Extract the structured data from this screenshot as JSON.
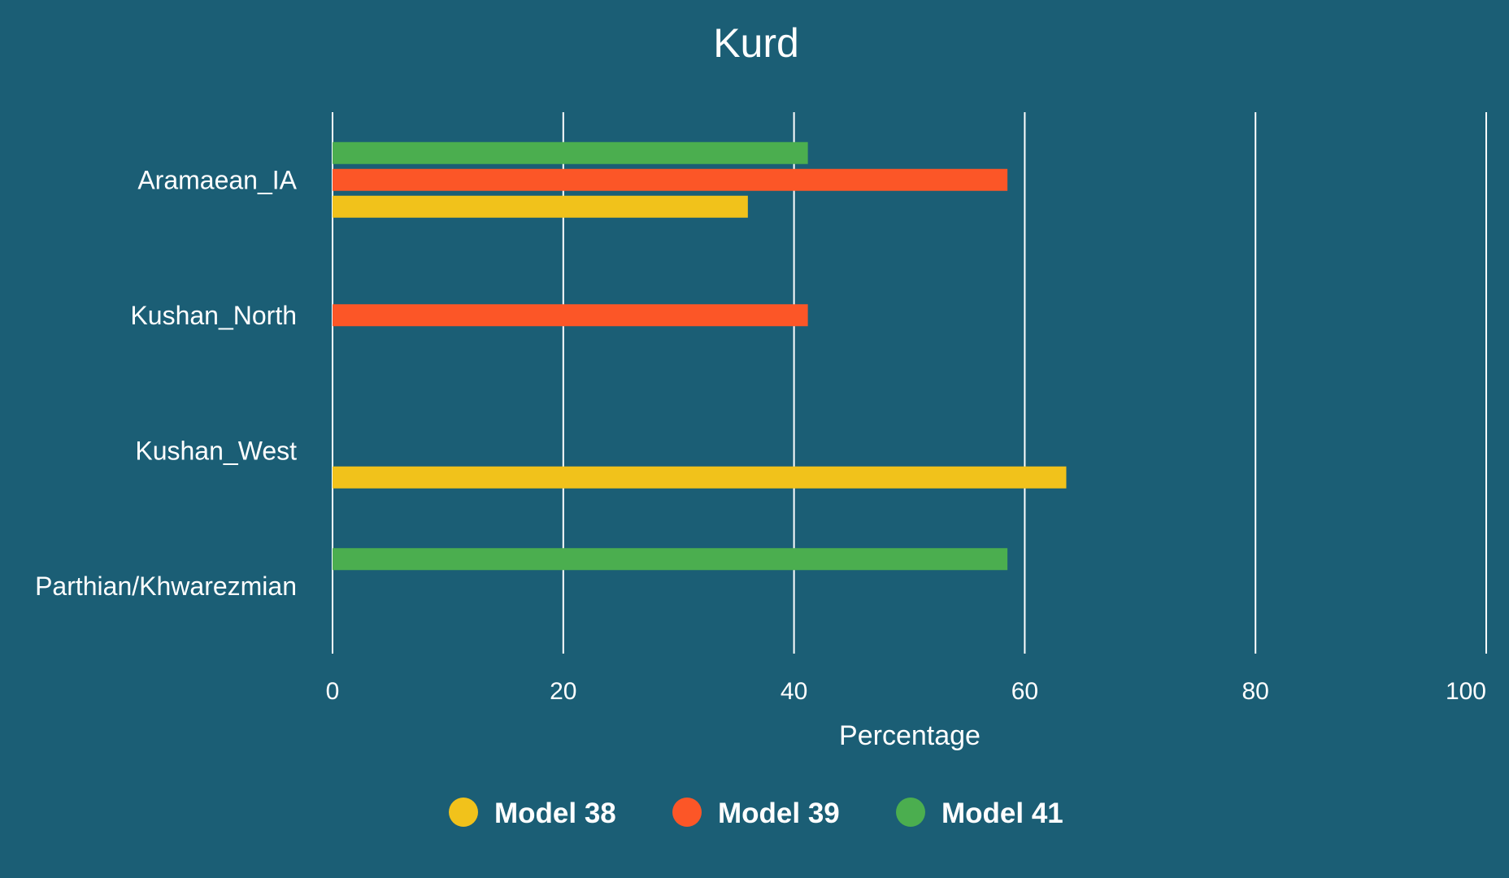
{
  "chart_data": {
    "type": "bar",
    "orientation": "horizontal",
    "title": "Kurd",
    "xlabel": "Percentage",
    "ylabel": "",
    "xlim": [
      0,
      100
    ],
    "x_ticks": [
      0,
      20,
      40,
      60,
      80,
      100
    ],
    "grid": "vertical lines",
    "legend_position": "bottom-center",
    "categories": [
      "Aramaean_IA",
      "Kushan_North",
      "Kushan_West",
      "Parthian/Khwarezmian"
    ],
    "series": [
      {
        "name": "Model 38",
        "color": "#f1c21b",
        "values": [
          36,
          null,
          63.6,
          null
        ]
      },
      {
        "name": "Model 39",
        "color": "#fc5627",
        "values": [
          58.5,
          41.2,
          null,
          null
        ]
      },
      {
        "name": "Model 41",
        "color": "#4bae4f",
        "values": [
          41.2,
          null,
          null,
          58.5
        ]
      }
    ]
  },
  "colors": {
    "background": "#1b5e75",
    "gridline": "#ffffff",
    "text": "#ffffff"
  }
}
